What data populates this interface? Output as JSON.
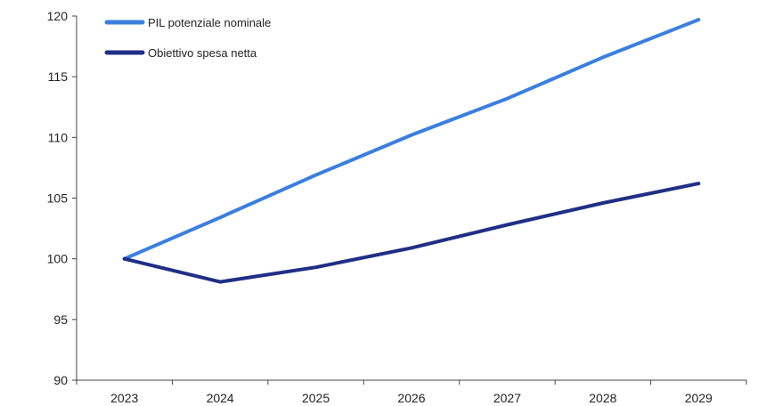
{
  "chart_data": {
    "type": "line",
    "title": "",
    "xlabel": "",
    "ylabel": "",
    "categories": [
      "2023",
      "2024",
      "2025",
      "2026",
      "2027",
      "2028",
      "2029"
    ],
    "ylim": [
      90,
      120
    ],
    "yticks": [
      90,
      95,
      100,
      105,
      110,
      115,
      120
    ],
    "grid": false,
    "legend_position": "top-left",
    "series": [
      {
        "name": "PIL potenziale nominale",
        "color": "#3b7fde",
        "values": [
          100.0,
          103.4,
          106.9,
          110.2,
          113.2,
          116.6,
          119.7
        ]
      },
      {
        "name": "Obiettivo spesa netta",
        "color": "#1f2f86",
        "values": [
          100.0,
          98.1,
          99.3,
          100.9,
          102.8,
          104.6,
          106.2
        ]
      }
    ]
  }
}
